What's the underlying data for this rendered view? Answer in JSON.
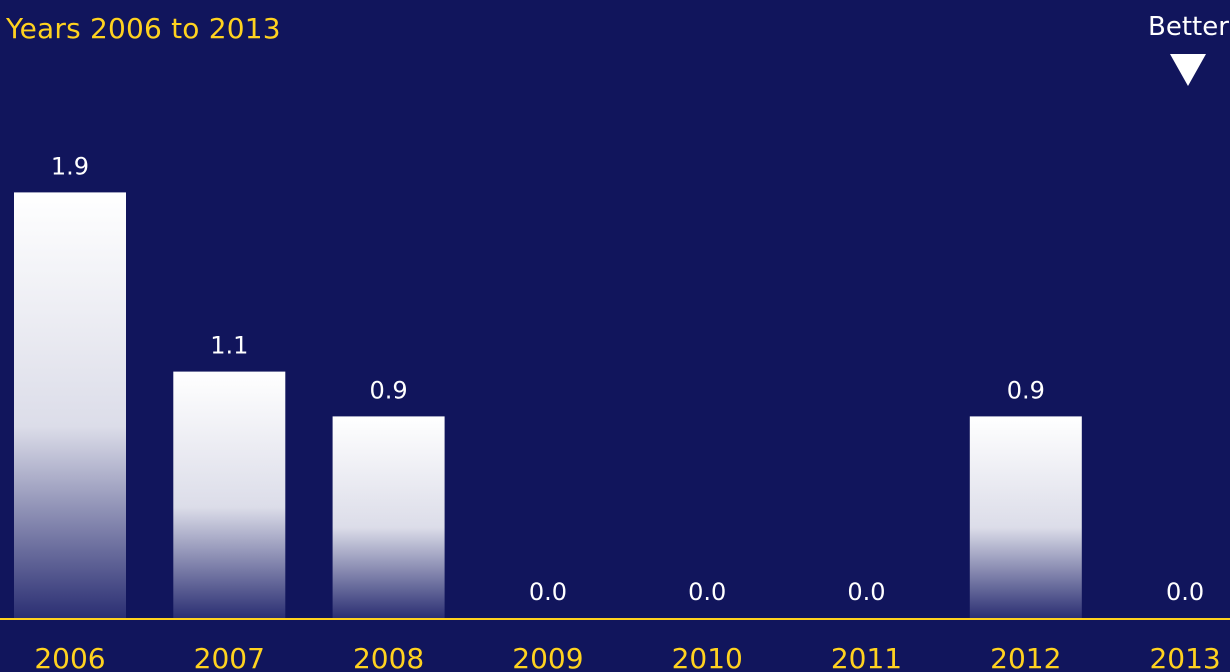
{
  "chart_data": {
    "type": "bar",
    "title": "Years 2006 to 2013",
    "categories": [
      "2006",
      "2007",
      "2008",
      "2009",
      "2010",
      "2011",
      "2012",
      "2013"
    ],
    "values": [
      1.9,
      1.1,
      0.9,
      0.0,
      0.0,
      0.0,
      0.9,
      0.0
    ],
    "value_labels": [
      "1.9",
      "1.1",
      "0.9",
      "0.0",
      "0.0",
      "0.0",
      "0.9",
      "0.0"
    ],
    "xlabel": "",
    "ylabel": "",
    "ylim": [
      0,
      2.0
    ],
    "grid": false,
    "legend": "none",
    "direction_indicator": {
      "label": "Better",
      "direction": "down"
    },
    "colors": {
      "background": "#11155c",
      "accent": "#ffd21f",
      "bar_top": "#ffffff",
      "bar_bottom": "#2b2f73",
      "label": "#ffffff"
    }
  }
}
